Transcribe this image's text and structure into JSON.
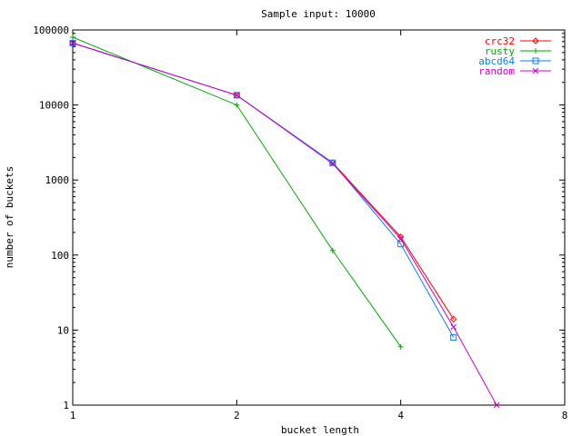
{
  "chart_data": {
    "type": "line",
    "title": "Sample input: 10000",
    "xlabel": "bucket length",
    "ylabel": "number of buckets",
    "xscale": "log2",
    "yscale": "log10",
    "xlim": [
      1,
      8
    ],
    "ylim": [
      1,
      100000
    ],
    "x_ticks": [
      1,
      2,
      4,
      8
    ],
    "x_tick_labels": [
      "1",
      "2",
      "4",
      "8"
    ],
    "y_ticks": [
      1,
      10,
      100,
      1000,
      10000,
      100000
    ],
    "y_tick_labels": [
      "1",
      "10",
      "100",
      "1000",
      "10000",
      "100000"
    ],
    "grid": false,
    "legend_position": "top-right",
    "series": [
      {
        "name": "crc32",
        "color": "#ff0000",
        "marker": "diamond",
        "x": [
          1,
          2,
          3,
          4,
          5
        ],
        "y": [
          67000,
          13500,
          1700,
          175,
          14
        ]
      },
      {
        "name": "rusty",
        "color": "#00aa00",
        "marker": "plus",
        "x": [
          1,
          2,
          3,
          4
        ],
        "y": [
          80000,
          10000,
          115,
          6
        ]
      },
      {
        "name": "abcd64",
        "color": "#0080ff",
        "marker": "square",
        "x": [
          1,
          2,
          3,
          4,
          5
        ],
        "y": [
          67000,
          13500,
          1700,
          140,
          8
        ]
      },
      {
        "name": "random",
        "color": "#cc00cc",
        "marker": "cross",
        "x": [
          1,
          2,
          3,
          4,
          5,
          6
        ],
        "y": [
          67000,
          13500,
          1650,
          165,
          11,
          1
        ]
      }
    ]
  }
}
